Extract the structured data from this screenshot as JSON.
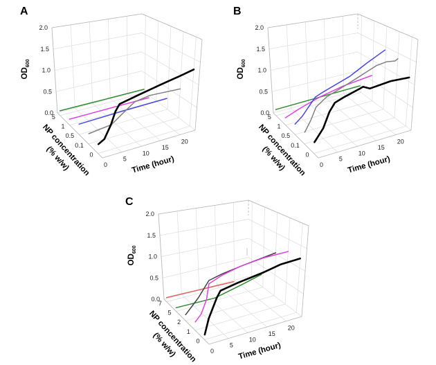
{
  "chart_data": [
    {
      "panel": "A",
      "type": "line",
      "projection": "3d",
      "zlabel": "OD",
      "zlabel_subscript": "600",
      "xlabel": "Time (hour)",
      "ylabel_line1": "NP concentration",
      "ylabel_line2": "(% w/w)",
      "zlim": [
        0,
        2
      ],
      "z_ticks": [
        "0.0",
        "0.5",
        "1.0",
        "1.5",
        "2.0"
      ],
      "x_ticks": [
        "0",
        "5",
        "10",
        "15",
        "20"
      ],
      "conc_levels": [
        "0",
        "0.1",
        "0.5",
        "1",
        "5"
      ],
      "grid": true,
      "series": [
        {
          "conc": "0",
          "color": "#000000",
          "points": [
            [
              0,
              0.18
            ],
            [
              1.5,
              0.25
            ],
            [
              3,
              0.5
            ],
            [
              4,
              0.75
            ],
            [
              5,
              0.88
            ],
            [
              10,
              0.98
            ],
            [
              15,
              1.08
            ],
            [
              20,
              1.18
            ],
            [
              24,
              1.27
            ]
          ]
        },
        {
          "conc": "0.1",
          "color": "#808080",
          "points": [
            [
              0,
              0.21
            ],
            [
              6,
              0.27
            ],
            [
              9,
              0.45
            ],
            [
              12,
              0.63
            ],
            [
              16,
              0.69
            ],
            [
              24,
              0.67
            ]
          ]
        },
        {
          "conc": "0.5",
          "color": "#4747e0",
          "points": [
            [
              0,
              0.22
            ],
            [
              12,
              0.25
            ],
            [
              23.7,
              0.27
            ]
          ]
        },
        {
          "conc": "1",
          "color": "#e040e0",
          "points": [
            [
              0,
              0.13
            ],
            [
              11,
              0.13
            ],
            [
              21.9,
              0.13
            ]
          ]
        },
        {
          "conc": "5",
          "color": "#2e8b2e",
          "points": [
            [
              0,
              0.11
            ],
            [
              12,
              0.1
            ],
            [
              23.7,
              0.09
            ]
          ]
        }
      ]
    },
    {
      "panel": "B",
      "type": "line",
      "projection": "3d",
      "zlabel": "OD",
      "zlabel_subscript": "600",
      "xlabel": "Time (hour)",
      "ylabel_line1": "NP concentration",
      "ylabel_line2": "(% w/w)",
      "zlim": [
        0,
        2
      ],
      "z_ticks": [
        "0.0",
        "0.5",
        "1.0",
        "1.5",
        "2.0"
      ],
      "x_ticks": [
        "0",
        "5",
        "10",
        "15",
        "20"
      ],
      "conc_levels": [
        "0",
        "0.1",
        "0.5",
        "1",
        "5"
      ],
      "grid": true,
      "series": [
        {
          "conc": "0",
          "color": "#000000",
          "points": [
            [
              0,
              0.22
            ],
            [
              2.1,
              0.45
            ],
            [
              3.5,
              0.75
            ],
            [
              4.8,
              0.91
            ],
            [
              7.1,
              0.98
            ],
            [
              11,
              1.08
            ],
            [
              12,
              1.11
            ],
            [
              13.8,
              1.04
            ],
            [
              19.2,
              1.1
            ],
            [
              24,
              1.09
            ]
          ]
        },
        {
          "conc": "0.1",
          "color": "#808080",
          "points": [
            [
              0,
              0.24
            ],
            [
              1.5,
              0.45
            ],
            [
              2.8,
              0.7
            ],
            [
              5.5,
              0.86
            ],
            [
              11.4,
              1.05
            ],
            [
              18.4,
              1.31
            ],
            [
              21,
              1.35
            ],
            [
              23.3,
              1.33
            ],
            [
              24,
              1.37
            ]
          ]
        },
        {
          "conc": "0.5",
          "color": "#4747e0",
          "points": [
            [
              0,
              0.22
            ],
            [
              2,
              0.35
            ],
            [
              5.4,
              0.69
            ],
            [
              7.4,
              0.76
            ],
            [
              14.6,
              0.98
            ],
            [
              19,
              1.2
            ],
            [
              23.8,
              1.43
            ]
          ]
        },
        {
          "conc": "1",
          "color": "#e040e0",
          "points": [
            [
              0,
              0.16
            ],
            [
              3.9,
              0.28
            ],
            [
              9.6,
              0.43
            ],
            [
              16,
              0.55
            ],
            [
              23.7,
              0.64
            ]
          ]
        },
        {
          "conc": "5",
          "color": "#2e8b2e",
          "points": [
            [
              0,
              0.14
            ],
            [
              12,
              0.16
            ],
            [
              23.7,
              0.18
            ]
          ]
        }
      ]
    },
    {
      "panel": "C",
      "type": "line",
      "projection": "3d",
      "zlabel": "OD",
      "zlabel_subscript": "600",
      "xlabel": "Time (hour)",
      "ylabel_line1": "NP concentration",
      "ylabel_line2": "(% w/w)",
      "zlim": [
        0,
        2
      ],
      "z_ticks": [
        "0.0",
        "0.5",
        "1.0",
        "1.5",
        "2.0"
      ],
      "x_ticks": [
        "0",
        "5",
        "10",
        "15",
        "20"
      ],
      "conc_levels": [
        "0",
        "1",
        "2",
        "5",
        "7"
      ],
      "grid": true,
      "series": [
        {
          "conc": "0",
          "color": "#000000",
          "points": [
            [
              0,
              0.1
            ],
            [
              0.8,
              0.4
            ],
            [
              2.6,
              0.77
            ],
            [
              3.5,
              0.9
            ],
            [
              8,
              0.98
            ],
            [
              14.7,
              1.08
            ],
            [
              18.9,
              1.17
            ],
            [
              24,
              1.21
            ]
          ]
        },
        {
          "conc": "1",
          "color": "#e040e0",
          "points": [
            [
              0,
              0.17
            ],
            [
              1.5,
              0.3
            ],
            [
              2.8,
              0.57
            ],
            [
              3.3,
              0.89
            ],
            [
              6.5,
              1.0
            ],
            [
              11.3,
              1.11
            ],
            [
              17.5,
              1.19
            ],
            [
              24,
              1.22
            ]
          ]
        },
        {
          "conc": "2",
          "color": "#404040",
          "points": [
            [
              0,
              0.13
            ],
            [
              3.4,
              0.42
            ],
            [
              6.2,
              0.74
            ],
            [
              9.8,
              0.82
            ],
            [
              15.6,
              0.91
            ],
            [
              24,
              1.03
            ]
          ]
        },
        {
          "conc": "5",
          "color": "#2e8b2e",
          "points": [
            [
              0,
              0.08
            ],
            [
              10.7,
              0.06
            ],
            [
              18.4,
              0.21
            ],
            [
              23.5,
              0.33
            ]
          ]
        },
        {
          "conc": "7",
          "color": "#e06060",
          "points": [
            [
              0,
              0.1
            ],
            [
              19,
              0.05
            ]
          ]
        }
      ]
    }
  ]
}
